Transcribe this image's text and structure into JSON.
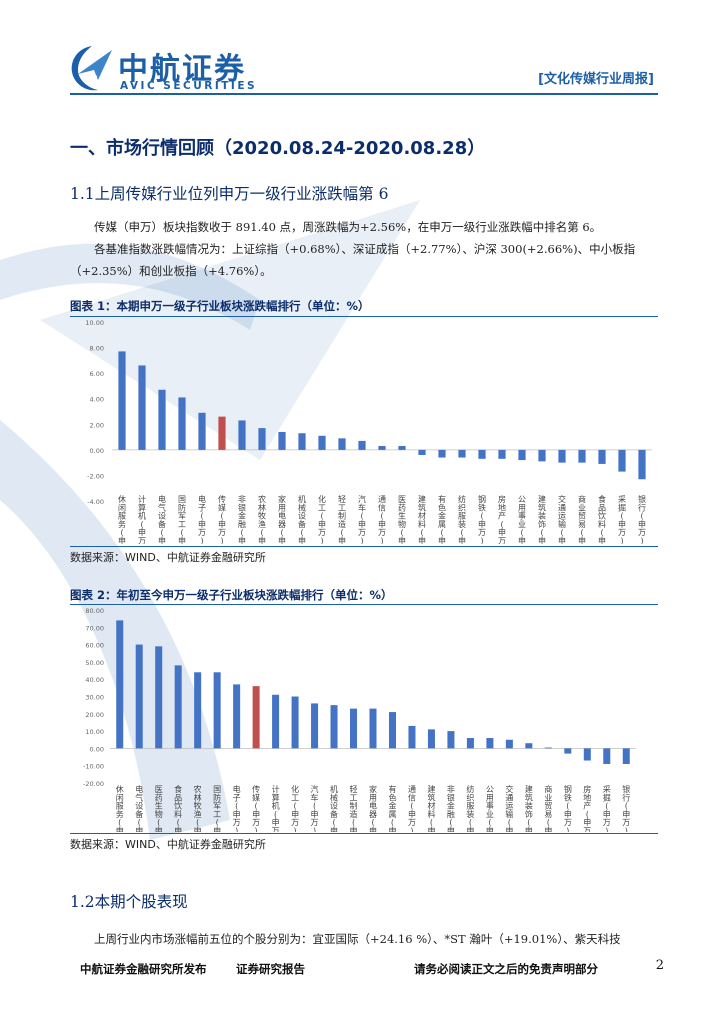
{
  "header": {
    "brand_cn": "中航证券",
    "brand_en": "AVIC SECURITIES",
    "logo_mark_text": "AVIC",
    "report_type": "[文化传媒行业周报]"
  },
  "section": {
    "title": "一、市场行情回顾（2020.08.24-2020.08.28）",
    "sub1": "1.1上周传媒行业位列申万一级行业涨跌幅第 6",
    "para1": "传媒（申万）板块指数收于 891.40 点，周涨跌幅为+2.56%，在申万一级行业涨跌幅中排名第 6。",
    "para2_line1": "各基准指数涨跌幅情况为：上证综指（+0.68%）、深证成指（+2.77%）、沪深 300(+2.66%)、中小板指",
    "para2_line2": "（+2.35%）和创业板指（+4.76%）。",
    "sub2": "1.2本期个股表现",
    "para3": "上周行业内市场涨幅前五位的个股分别为：宜亚国际（+24.16 %）、*ST 瀚叶（+19.01%）、紫天科技"
  },
  "figure1": {
    "caption": "图表 1：本期申万一级子行业板块涨跌幅排行（单位：%）",
    "source": "数据来源：WIND、中航证券金融研究所"
  },
  "figure2": {
    "caption": "图表 2：年初至今申万一级子行业板块涨跌幅排行（单位：%）",
    "source": "数据来源：WIND、中航证券金融研究所"
  },
  "footer": {
    "left": "中航证券金融研究所发布",
    "middle": "证券研究报告",
    "right": "请务必阅读正文之后的免责声明部分",
    "page": "2"
  },
  "colors": {
    "bar": "#4472c4",
    "highlight": "#c0504d",
    "brand": "#1b5fa8"
  },
  "chart_data": [
    {
      "type": "bar",
      "title": "图表 1：本期申万一级子行业板块涨跌幅排行（单位：%）",
      "ylim": [
        -4,
        10
      ],
      "yticks": [
        "10.00",
        "8.00",
        "6.00",
        "4.00",
        "2.00",
        "0.00",
        "-2.00",
        "-4.00"
      ],
      "yticks_values": [
        10,
        8,
        6,
        4,
        2,
        0,
        -2,
        -4
      ],
      "grid": false,
      "highlight_category": "传媒(申万)",
      "categories": [
        "休闲服务(申万)",
        "计算机(申万)",
        "电气设备(申万)",
        "国防军工(申万)",
        "电子(申万)",
        "传媒(申万)",
        "非银金融(申万)",
        "农林牧渔(申万)",
        "家用电器(申万)",
        "机械设备(申万)",
        "化工(申万)",
        "轻工制造(申万)",
        "汽车(申万)",
        "通信(申万)",
        "医药生物(申万)",
        "建筑材料(申万)",
        "有色金属(申万)",
        "纺织服装(申万)",
        "钢铁(申万)",
        "房地产(申万)",
        "公用事业(申万)",
        "建筑装饰(申万)",
        "交通运输(申万)",
        "商业贸易(申万)",
        "食品饮料(申万)",
        "采掘(申万)",
        "银行(申万)"
      ],
      "values": [
        7.7,
        6.6,
        4.7,
        4.1,
        2.9,
        2.6,
        2.3,
        1.7,
        1.4,
        1.3,
        1.1,
        0.9,
        0.7,
        0.3,
        0.3,
        -0.4,
        -0.6,
        -0.6,
        -0.7,
        -0.7,
        -0.8,
        -0.9,
        -1.0,
        -1.0,
        -1.1,
        -1.7,
        -2.3
      ]
    },
    {
      "type": "bar",
      "title": "图表 2：年初至今申万一级子行业板块涨跌幅排行（单位：%）",
      "ylim": [
        -20,
        80
      ],
      "yticks": [
        "80.00",
        "70.00",
        "60.00",
        "50.00",
        "40.00",
        "30.00",
        "20.00",
        "10.00",
        "0.00",
        "-10.00",
        "-20.00"
      ],
      "yticks_values": [
        80,
        70,
        60,
        50,
        40,
        30,
        20,
        10,
        0,
        -10,
        -20
      ],
      "grid": false,
      "highlight_category": "传媒(申万)",
      "categories": [
        "休闲服务(申万)",
        "电气设备(申万)",
        "医药生物(申万)",
        "食品饮料(申万)",
        "农林牧渔(申万)",
        "国防军工(申万)",
        "电子(申万)",
        "传媒(申万)",
        "计算机(申万)",
        "化工(申万)",
        "汽车(申万)",
        "机械设备(申万)",
        "轻工制造(申万)",
        "家用电器(申万)",
        "有色金属(申万)",
        "通信(申万)",
        "建筑材料(申万)",
        "非银金融(申万)",
        "纺织服装(申万)",
        "公用事业(申万)",
        "交通运输(申万)",
        "建筑装饰(申万)",
        "商业贸易(申万)",
        "钢铁(申万)",
        "房地产(申万)",
        "采掘(申万)",
        "银行(申万)"
      ],
      "values": [
        74,
        60,
        59,
        48,
        44,
        44,
        37,
        36,
        31,
        30,
        26,
        25,
        23,
        23,
        21,
        13,
        11,
        10,
        6,
        6,
        5,
        3,
        0.5,
        -3,
        -7,
        -9,
        -9
      ]
    }
  ]
}
